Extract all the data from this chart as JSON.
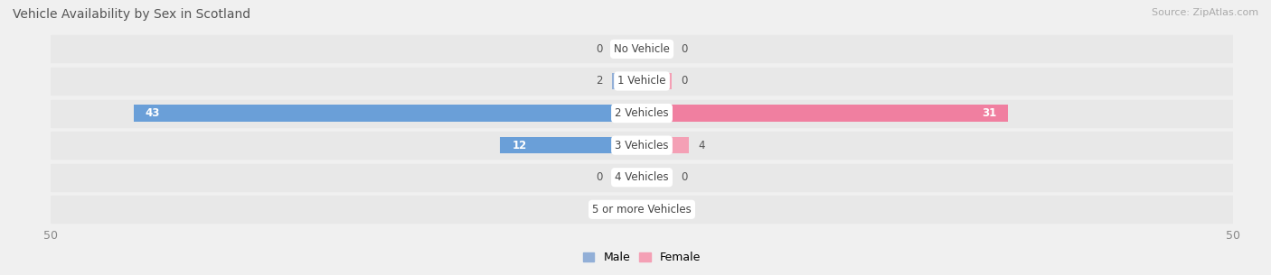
{
  "title": "Vehicle Availability by Sex in Scotland",
  "source": "Source: ZipAtlas.com",
  "categories": [
    "No Vehicle",
    "1 Vehicle",
    "2 Vehicles",
    "3 Vehicles",
    "4 Vehicles",
    "5 or more Vehicles"
  ],
  "male_values": [
    0,
    2,
    43,
    12,
    0,
    0
  ],
  "female_values": [
    0,
    0,
    31,
    4,
    0,
    0
  ],
  "male_color": "#92afd7",
  "female_color": "#f4a0b5",
  "male_color_full": "#6a9fd8",
  "female_color_full": "#f07fa0",
  "male_label": "Male",
  "female_label": "Female",
  "xlim": 50,
  "bar_height": 0.52,
  "min_bar_display": 2.5,
  "bg_row_color": "#e8e8e8",
  "fig_bg": "#f0f0f0",
  "title_color": "#555555",
  "axis_label_color": "#888888",
  "category_text_color": "#444444"
}
